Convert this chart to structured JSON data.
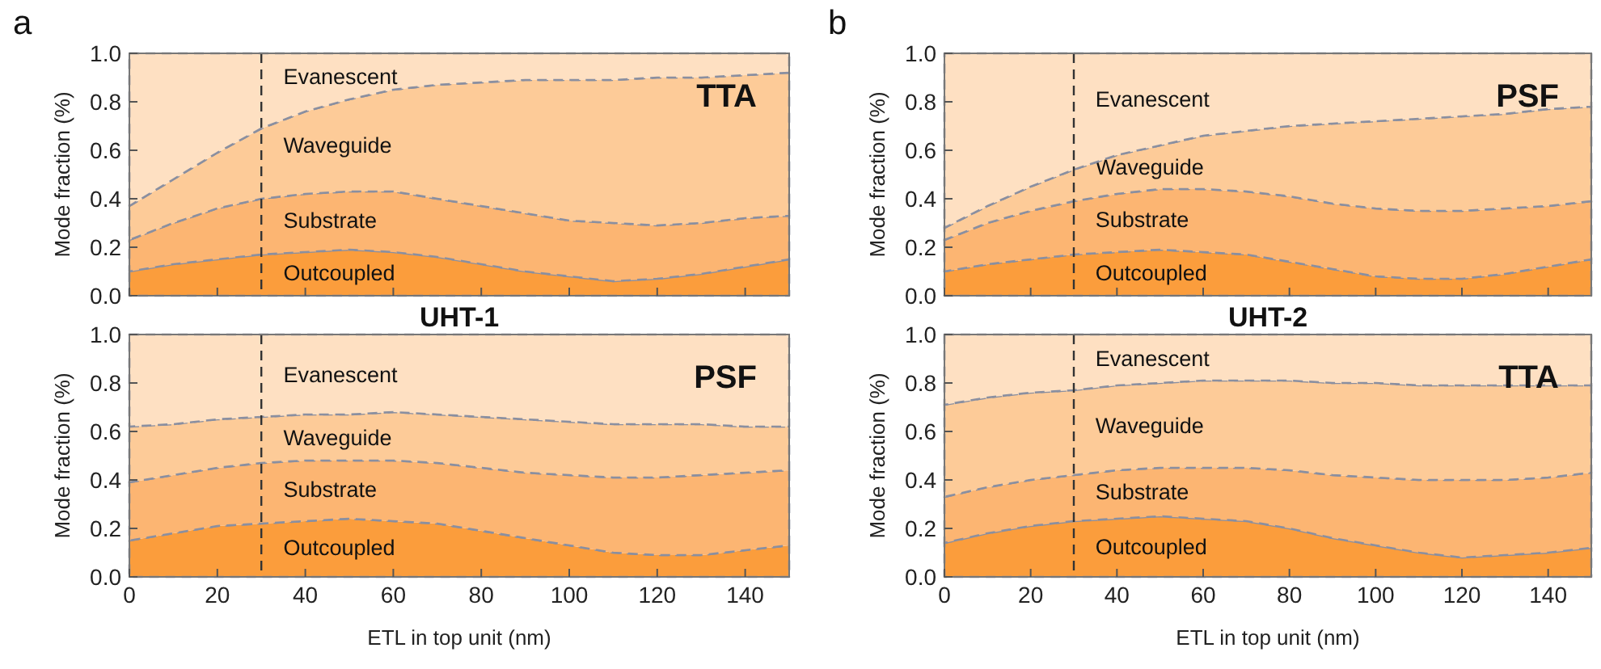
{
  "chart_data": [
    {
      "type": "area",
      "stacked": true,
      "annotations": [
        "a",
        "TTA"
      ],
      "ylabel": "Mode fraction (%)",
      "tick_labels": "y",
      "line_style": "dashed",
      "xlim": [
        0,
        150
      ],
      "xticks": [
        {
          "value": 0,
          "label": null
        },
        {
          "value": 20,
          "label": null
        },
        {
          "value": 40,
          "label": null
        },
        {
          "value": 60,
          "label": null
        },
        {
          "value": 80,
          "label": null
        },
        {
          "value": 100,
          "label": null
        },
        {
          "value": 120,
          "label": null
        },
        {
          "value": 140,
          "label": null
        }
      ],
      "ylim": [
        0,
        1
      ],
      "yticks": [
        {
          "value": 0,
          "label": "0.0"
        },
        {
          "value": 0.2,
          "label": "0.2"
        },
        {
          "value": 0.4,
          "label": "0.4"
        },
        {
          "value": 0.6,
          "label": "0.6"
        },
        {
          "value": 0.8,
          "label": "0.8"
        },
        {
          "value": 1,
          "label": "1.0"
        }
      ],
      "ref_lines": [
        {
          "axis": "x",
          "value": 30,
          "color": "#333333",
          "line_style": "dashed"
        }
      ],
      "x": [
        0,
        10,
        20,
        30,
        40,
        50,
        60,
        70,
        80,
        90,
        100,
        110,
        120,
        130,
        140,
        150
      ],
      "series": [
        {
          "name": "Outcoupled",
          "color": "#fb9d3c",
          "values": [
            0.1,
            0.13,
            0.15,
            0.17,
            0.18,
            0.19,
            0.18,
            0.16,
            0.13,
            0.1,
            0.08,
            0.06,
            0.07,
            0.09,
            0.12,
            0.15
          ]
        },
        {
          "name": "Substrate",
          "color": "#fcb572",
          "values": [
            0.13,
            0.17,
            0.21,
            0.23,
            0.24,
            0.24,
            0.25,
            0.24,
            0.24,
            0.24,
            0.23,
            0.24,
            0.22,
            0.21,
            0.2,
            0.18
          ]
        },
        {
          "name": "Waveguide",
          "color": "#fdcb98",
          "values": [
            0.14,
            0.18,
            0.23,
            0.29,
            0.34,
            0.38,
            0.42,
            0.47,
            0.51,
            0.55,
            0.58,
            0.59,
            0.61,
            0.6,
            0.59,
            0.59
          ]
        },
        {
          "name": "Evanescent",
          "color": "#fee0c2",
          "values": [
            0.63,
            0.52,
            0.41,
            0.31,
            0.24,
            0.19,
            0.15,
            0.13,
            0.12,
            0.11,
            0.11,
            0.11,
            0.1,
            0.1,
            0.09,
            0.08
          ]
        }
      ]
    },
    {
      "type": "area",
      "stacked": true,
      "annotations": [
        "b",
        "PSF"
      ],
      "ylabel": "Mode fraction (%)",
      "tick_labels": "y",
      "line_style": "dashed",
      "xlim": [
        0,
        150
      ],
      "xticks": [
        {
          "value": 0,
          "label": null
        },
        {
          "value": 20,
          "label": null
        },
        {
          "value": 40,
          "label": null
        },
        {
          "value": 60,
          "label": null
        },
        {
          "value": 80,
          "label": null
        },
        {
          "value": 100,
          "label": null
        },
        {
          "value": 120,
          "label": null
        },
        {
          "value": 140,
          "label": null
        }
      ],
      "ylim": [
        0,
        1
      ],
      "yticks": [
        {
          "value": 0,
          "label": "0.0"
        },
        {
          "value": 0.2,
          "label": "0.2"
        },
        {
          "value": 0.4,
          "label": "0.4"
        },
        {
          "value": 0.6,
          "label": "0.6"
        },
        {
          "value": 0.8,
          "label": "0.8"
        },
        {
          "value": 1,
          "label": "1.0"
        }
      ],
      "ref_lines": [
        {
          "axis": "x",
          "value": 30,
          "color": "#333333",
          "line_style": "dashed"
        }
      ],
      "x": [
        0,
        10,
        20,
        30,
        40,
        50,
        60,
        70,
        80,
        90,
        100,
        110,
        120,
        130,
        140,
        150
      ],
      "series": [
        {
          "name": "Outcoupled",
          "color": "#fb9d3c",
          "values": [
            0.1,
            0.13,
            0.15,
            0.17,
            0.18,
            0.19,
            0.18,
            0.17,
            0.14,
            0.11,
            0.08,
            0.07,
            0.07,
            0.09,
            0.12,
            0.15
          ]
        },
        {
          "name": "Substrate",
          "color": "#fcb572",
          "values": [
            0.13,
            0.17,
            0.2,
            0.22,
            0.24,
            0.25,
            0.26,
            0.26,
            0.27,
            0.27,
            0.28,
            0.28,
            0.28,
            0.27,
            0.25,
            0.24
          ]
        },
        {
          "name": "Waveguide",
          "color": "#fdcb98",
          "values": [
            0.05,
            0.07,
            0.1,
            0.13,
            0.16,
            0.18,
            0.22,
            0.25,
            0.29,
            0.33,
            0.36,
            0.38,
            0.39,
            0.39,
            0.4,
            0.39
          ]
        },
        {
          "name": "Evanescent",
          "color": "#fee0c2",
          "values": [
            0.72,
            0.63,
            0.55,
            0.48,
            0.42,
            0.38,
            0.34,
            0.32,
            0.3,
            0.29,
            0.28,
            0.27,
            0.26,
            0.25,
            0.23,
            0.22
          ]
        }
      ]
    },
    {
      "type": "area",
      "stacked": true,
      "title": "UHT-1",
      "annotations": [
        "PSF"
      ],
      "xlabel": "ETL in top unit (nm)",
      "ylabel": "Mode fraction (%)",
      "line_style": "dashed",
      "xlim": [
        0,
        150
      ],
      "xticks": [
        0,
        20,
        40,
        60,
        80,
        100,
        120,
        140
      ],
      "ylim": [
        0,
        1
      ],
      "yticks": [
        {
          "value": 0,
          "label": "0.0"
        },
        {
          "value": 0.2,
          "label": "0.2"
        },
        {
          "value": 0.4,
          "label": "0.4"
        },
        {
          "value": 0.6,
          "label": "0.6"
        },
        {
          "value": 0.8,
          "label": "0.8"
        },
        {
          "value": 1,
          "label": "1.0"
        }
      ],
      "ref_lines": [
        {
          "axis": "x",
          "value": 30,
          "color": "#333333",
          "line_style": "dashed"
        }
      ],
      "x": [
        0,
        10,
        20,
        30,
        40,
        50,
        60,
        70,
        80,
        90,
        100,
        110,
        120,
        130,
        140,
        150
      ],
      "series": [
        {
          "name": "Outcoupled",
          "color": "#fb9d3c",
          "values": [
            0.15,
            0.18,
            0.21,
            0.22,
            0.23,
            0.24,
            0.23,
            0.22,
            0.19,
            0.16,
            0.13,
            0.1,
            0.09,
            0.09,
            0.11,
            0.13
          ]
        },
        {
          "name": "Substrate",
          "color": "#fcb572",
          "values": [
            0.24,
            0.24,
            0.24,
            0.25,
            0.25,
            0.24,
            0.25,
            0.25,
            0.26,
            0.27,
            0.29,
            0.31,
            0.32,
            0.33,
            0.32,
            0.31
          ]
        },
        {
          "name": "Waveguide",
          "color": "#fdcb98",
          "values": [
            0.23,
            0.21,
            0.2,
            0.19,
            0.19,
            0.19,
            0.2,
            0.2,
            0.21,
            0.22,
            0.22,
            0.22,
            0.22,
            0.21,
            0.19,
            0.18
          ]
        },
        {
          "name": "Evanescent",
          "color": "#fee0c2",
          "values": [
            0.38,
            0.37,
            0.35,
            0.34,
            0.33,
            0.33,
            0.32,
            0.33,
            0.34,
            0.35,
            0.36,
            0.37,
            0.37,
            0.37,
            0.38,
            0.38
          ]
        }
      ]
    },
    {
      "type": "area",
      "stacked": true,
      "title": "UHT-2",
      "annotations": [
        "TTA"
      ],
      "xlabel": "ETL in top unit (nm)",
      "ylabel": "Mode fraction (%)",
      "line_style": "dashed",
      "xlim": [
        0,
        150
      ],
      "xticks": [
        0,
        20,
        40,
        60,
        80,
        100,
        120,
        140
      ],
      "ylim": [
        0,
        1
      ],
      "yticks": [
        {
          "value": 0,
          "label": "0.0"
        },
        {
          "value": 0.2,
          "label": "0.2"
        },
        {
          "value": 0.4,
          "label": "0.4"
        },
        {
          "value": 0.6,
          "label": "0.6"
        },
        {
          "value": 0.8,
          "label": "0.8"
        },
        {
          "value": 1,
          "label": "1.0"
        }
      ],
      "ref_lines": [
        {
          "axis": "x",
          "value": 30,
          "color": "#333333",
          "line_style": "dashed"
        }
      ],
      "x": [
        0,
        10,
        20,
        30,
        40,
        50,
        60,
        70,
        80,
        90,
        100,
        110,
        120,
        130,
        140,
        150
      ],
      "series": [
        {
          "name": "Outcoupled",
          "color": "#fb9d3c",
          "values": [
            0.14,
            0.18,
            0.21,
            0.23,
            0.24,
            0.25,
            0.24,
            0.23,
            0.2,
            0.16,
            0.13,
            0.1,
            0.08,
            0.09,
            0.1,
            0.12
          ]
        },
        {
          "name": "Substrate",
          "color": "#fcb572",
          "values": [
            0.19,
            0.19,
            0.19,
            0.19,
            0.2,
            0.2,
            0.21,
            0.22,
            0.24,
            0.26,
            0.28,
            0.3,
            0.32,
            0.31,
            0.31,
            0.31
          ]
        },
        {
          "name": "Waveguide",
          "color": "#fdcb98",
          "values": [
            0.38,
            0.37,
            0.36,
            0.35,
            0.35,
            0.35,
            0.36,
            0.36,
            0.37,
            0.38,
            0.39,
            0.39,
            0.39,
            0.39,
            0.38,
            0.36
          ]
        },
        {
          "name": "Evanescent",
          "color": "#fee0c2",
          "values": [
            0.29,
            0.26,
            0.24,
            0.23,
            0.21,
            0.2,
            0.19,
            0.19,
            0.19,
            0.2,
            0.2,
            0.21,
            0.21,
            0.21,
            0.21,
            0.21
          ]
        }
      ]
    }
  ]
}
